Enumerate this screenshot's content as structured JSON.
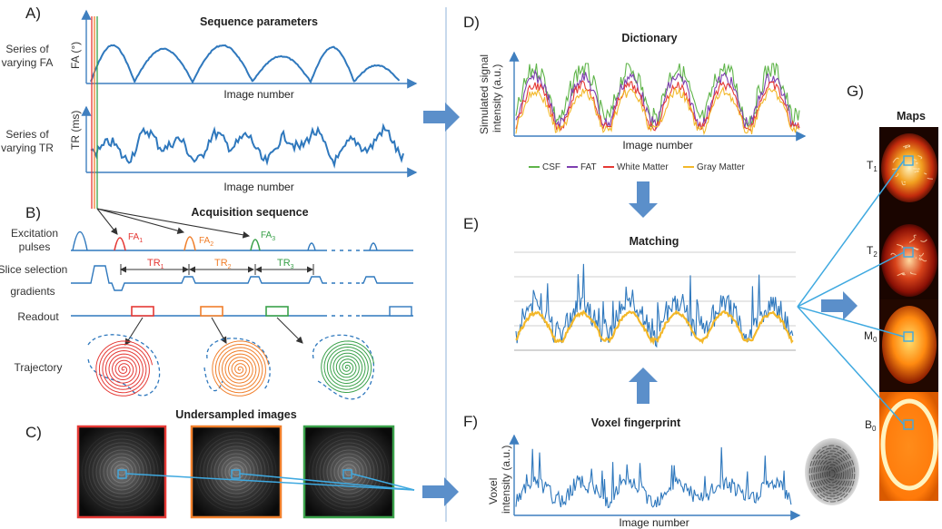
{
  "panels": {
    "A": {
      "letter": "A)",
      "title": "Sequence parameters",
      "row1_label": [
        "Series of",
        "varying FA"
      ],
      "row1_axis": "FA (°)",
      "row1_xlabel": "Image number",
      "row2_label": [
        "Series of",
        "varying TR"
      ],
      "row2_axis": "TR (ms)",
      "row2_xlabel": "Image number"
    },
    "B": {
      "letter": "B)",
      "title": "Acquisition sequence",
      "excitation_label": [
        "Excitation",
        "pulses"
      ],
      "slice_label": [
        "Slice selection",
        "gradients"
      ],
      "readout_label": "Readout",
      "trajectory_label": "Trajectory",
      "fa_labels": [
        {
          "main": "FA",
          "sub": "1",
          "color": "#e53935"
        },
        {
          "main": "FA",
          "sub": "2",
          "color": "#f07f2b"
        },
        {
          "main": "FA",
          "sub": "3",
          "color": "#3aa14a"
        }
      ],
      "tr_labels": [
        {
          "main": "TR",
          "sub": "1",
          "color": "#e53935"
        },
        {
          "main": "TR",
          "sub": "2",
          "color": "#f07f2b"
        },
        {
          "main": "TR",
          "sub": "3",
          "color": "#3aa14a"
        }
      ]
    },
    "C": {
      "letter": "C)",
      "title": "Undersampled images",
      "frame_colors": [
        "#e53935",
        "#f07f2b",
        "#3aa14a"
      ]
    },
    "D": {
      "letter": "D)",
      "title": "Dictionary",
      "ylabel": [
        "Simulated signal",
        "intensity (a.u.)"
      ],
      "xlabel": "Image number",
      "legend": [
        {
          "name": "CSF",
          "color": "#5fb44a"
        },
        {
          "name": "FAT",
          "color": "#7e3fb0"
        },
        {
          "name": "White Matter",
          "color": "#e53935"
        },
        {
          "name": "Gray Matter",
          "color": "#f3b82a"
        }
      ]
    },
    "E": {
      "letter": "E)",
      "title": "Matching"
    },
    "F": {
      "letter": "F)",
      "title": "Voxel fingerprint",
      "ylabel": [
        "Voxel",
        "intensity (a.u.)"
      ],
      "xlabel": "Image number"
    },
    "G": {
      "letter": "G)",
      "title": "Maps",
      "map_labels": [
        {
          "main": "T",
          "sub": "1"
        },
        {
          "main": "T",
          "sub": "2"
        },
        {
          "main": "M",
          "sub": "0"
        },
        {
          "main": "B",
          "sub": "0"
        }
      ]
    }
  },
  "colors": {
    "signal_blue": "#2f78bd",
    "arrow_blue": "#5b8fca",
    "link_blue": "#3fa9e0",
    "axis": "#3f7fbf"
  }
}
